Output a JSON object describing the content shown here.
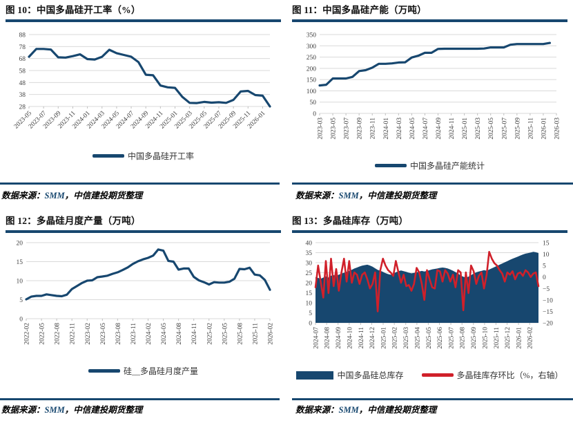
{
  "colors": {
    "navy": "#17476f",
    "red": "#d0202a",
    "grid": "#d9d9d9",
    "tick": "#bfbfbf",
    "axis_text": "#404040",
    "title_text": "#111111",
    "source_highlight": "#17476f"
  },
  "source_note": {
    "prefix": "数据来源：",
    "highlight": "SMM",
    "suffix": "，中信建投期货整理"
  },
  "chart_data": [
    {
      "id": "fig10",
      "title": "图 10：中国多晶硅开工率（%）",
      "type": "line",
      "x_freq": "monthly",
      "x_range": [
        "2023-05",
        "2026-02"
      ],
      "n_slots": 34,
      "ylim": [
        28,
        88
      ],
      "yticks": [
        28,
        38,
        48,
        58,
        68,
        78,
        88
      ],
      "x_rotation": -45,
      "xticks": {
        "labels": [
          "2023-05",
          "2023-07",
          "2023-09",
          "2023-11",
          "2024-01",
          "2024-03",
          "2024-05",
          "2024-07",
          "2024-09",
          "2024-11",
          "2025-01",
          "2025-03",
          "2025-05",
          "2025-07",
          "2025-09",
          "2025-11",
          "2026-01"
        ],
        "slots": [
          0,
          2,
          4,
          6,
          8,
          10,
          12,
          14,
          16,
          18,
          20,
          22,
          24,
          26,
          28,
          30,
          32
        ]
      },
      "series": [
        {
          "name": "中国多晶硅开工率",
          "type": "line",
          "color": "navy",
          "width": 3.2,
          "values": [
            69.5,
            76,
            76,
            75.5,
            69,
            68.8,
            70,
            71.5,
            67.5,
            67.2,
            69.5,
            75.3,
            72.5,
            71,
            69.5,
            65,
            54.5,
            54,
            45.5,
            44,
            43.5,
            36,
            31,
            30.8,
            31.8,
            31.2,
            31.5,
            31,
            33.5,
            40.5,
            41,
            37.5,
            37,
            28
          ]
        }
      ],
      "legend": [
        {
          "label": "中国多晶硅开工率",
          "type": "line",
          "color": "navy"
        }
      ]
    },
    {
      "id": "fig11",
      "title": "图 11：中国多晶硅产能（万吨）",
      "type": "line",
      "x_freq": "monthly",
      "x_range": [
        "2023-03",
        "2026-02"
      ],
      "n_slots": 37,
      "ylim": [
        0,
        350
      ],
      "yticks": [
        0,
        50,
        100,
        150,
        200,
        250,
        300,
        350
      ],
      "x_rotation": -90,
      "xticks": {
        "labels": [
          "2023-03",
          "2023-05",
          "2023-07",
          "2023-09",
          "2023-11",
          "2024-01",
          "2024-03",
          "2024-05",
          "2024-07",
          "2024-09",
          "2024-11",
          "2025-01",
          "2025-03",
          "2025-05",
          "2025-07",
          "2025-09",
          "2025-11",
          "2026-01",
          "2026-03"
        ],
        "slots": [
          0,
          2,
          4,
          6,
          8,
          10,
          12,
          14,
          16,
          18,
          20,
          22,
          24,
          26,
          28,
          30,
          32,
          34,
          36
        ]
      },
      "series": [
        {
          "name": "中国多晶硅产能统计",
          "type": "line",
          "color": "navy",
          "width": 3.2,
          "values": [
            124,
            127,
            155,
            155,
            155,
            162,
            188,
            192,
            203,
            220,
            220,
            222,
            226,
            227,
            248,
            256,
            269,
            269,
            286,
            287,
            287,
            287,
            287,
            287,
            287,
            288,
            293,
            293,
            293,
            305,
            308,
            308,
            308,
            308,
            308,
            313
          ]
        }
      ],
      "legend": [
        {
          "label": "中国多晶硅产能统计",
          "type": "line",
          "color": "navy"
        }
      ]
    },
    {
      "id": "fig12",
      "title": "图 12：多晶硅月度产量（万吨）",
      "type": "line",
      "x_freq": "monthly",
      "x_range": [
        "2022-02",
        "2026-02"
      ],
      "n_slots": 49,
      "ylim": [
        0,
        20
      ],
      "yticks": [
        0,
        5,
        10,
        15,
        20
      ],
      "x_rotation": -90,
      "xticks": {
        "labels": [
          "2022-02",
          "2022-05",
          "2022-08",
          "2022-11",
          "2023-02",
          "2023-05",
          "2023-08",
          "2023-11",
          "2024-02",
          "2024-05",
          "2024-08",
          "2024-11",
          "2025-02",
          "2025-05",
          "2025-08",
          "2025-11",
          "2026-02"
        ],
        "slots": [
          0,
          3,
          6,
          9,
          12,
          15,
          18,
          21,
          24,
          27,
          30,
          33,
          36,
          39,
          42,
          45,
          48
        ]
      },
      "series": [
        {
          "name": "硅__多晶硅月度产量",
          "type": "line",
          "color": "navy",
          "width": 3.2,
          "values": [
            5.1,
            5.8,
            6.0,
            6.0,
            6.4,
            6.2,
            6.0,
            5.9,
            6.3,
            7.8,
            8.6,
            9.4,
            10.0,
            10.1,
            10.9,
            11.1,
            11.3,
            11.8,
            12.2,
            12.8,
            13.5,
            14.4,
            15.1,
            15.6,
            16.0,
            16.6,
            18.2,
            17.9,
            15.2,
            15.0,
            12.9,
            13.2,
            13.2,
            11.0,
            10.1,
            9.6,
            9.0,
            9.6,
            9.5,
            9.5,
            9.7,
            10.5,
            13.1,
            13.0,
            13.4,
            11.6,
            11.4,
            10.2,
            7.6
          ]
        }
      ],
      "legend": [
        {
          "label": "硅__多晶硅月度产量",
          "type": "line",
          "color": "navy"
        }
      ]
    },
    {
      "id": "fig13",
      "title": "图 13：多晶硅库存（万吨）",
      "type": "area+line",
      "x_freq": "weekly",
      "x_range": [
        "2024-07",
        "2026-02"
      ],
      "n_slots": 87,
      "ylim": [
        0,
        40
      ],
      "yticks": [
        0,
        5,
        10,
        15,
        20,
        25,
        30,
        35,
        40
      ],
      "ylim_right": [
        -20,
        15
      ],
      "yticks_right": [
        -20,
        -15,
        -10,
        -5,
        0,
        5,
        10,
        15
      ],
      "x_rotation": -90,
      "xticks": {
        "labels": [
          "2024-07",
          "2024-08",
          "2024-09",
          "2024-10",
          "2024-11",
          "2024-12",
          "2025-01",
          "2025-02",
          "2025-03",
          "2025-04",
          "2025-05",
          "2025-06",
          "2025-07",
          "2025-08",
          "2025-09",
          "2025-10",
          "2025-11",
          "2025-12",
          "2026-01",
          "2026-02"
        ],
        "slots": [
          0,
          4.3,
          8.7,
          13,
          17.4,
          21.7,
          26.1,
          30.4,
          34.8,
          39.1,
          43.5,
          47.8,
          52.2,
          56.5,
          60.9,
          65.2,
          69.6,
          73.9,
          78.3,
          82.6
        ]
      },
      "series": [
        {
          "name": "中国多晶硅总库存",
          "type": "area",
          "color": "navy",
          "axis": "left",
          "values": [
            22.8,
            22.4,
            22.0,
            22.6,
            23.2,
            22.6,
            23.5,
            23.8,
            23.4,
            24.0,
            24.6,
            25.0,
            25.4,
            25.9,
            26.5,
            27.1,
            27.6,
            28.1,
            28.5,
            28.8,
            29.0,
            28.6,
            28.0,
            27.2,
            26.4,
            26.0,
            25.4,
            24.8,
            24.3,
            24.0,
            24.6,
            25.2,
            25.8,
            26.1,
            25.8,
            25.4,
            25.0,
            24.7,
            24.9,
            25.2,
            25.6,
            25.9,
            25.6,
            25.9,
            26.3,
            26.7,
            26.9,
            27.1,
            27.4,
            27.6,
            27.4,
            27.1,
            26.6,
            26.0,
            25.3,
            24.6,
            23.6,
            23.0,
            22.6,
            23.0,
            23.8,
            24.6,
            25.2,
            25.6,
            25.9,
            26.3,
            26.0,
            26.6,
            27.2,
            27.8,
            28.4,
            29.0,
            29.6,
            30.2,
            30.8,
            31.4,
            32.0,
            32.5,
            33.0,
            33.6,
            34.1,
            34.5,
            34.8,
            35.1,
            35.4,
            35.2,
            34.8
          ]
        },
        {
          "name": "多晶硅库存环比（%，右轴）",
          "type": "line",
          "color": "red",
          "width": 2.6,
          "axis": "right",
          "values": [
            -4.5,
            5,
            -2,
            -9,
            7,
            -7,
            8,
            -4,
            3.5,
            -6,
            2,
            8,
            -2,
            7,
            -2.5,
            2,
            1,
            -3,
            1,
            2,
            -1,
            -5,
            -3,
            2,
            -15,
            3,
            8,
            5,
            3,
            2,
            0.5,
            7,
            2,
            -2.5,
            1,
            -4,
            -3.5,
            -6,
            -3,
            4,
            2,
            -3,
            -10,
            3,
            -1,
            -4.5,
            -5,
            3,
            2.5,
            -2,
            3,
            1.5,
            -2,
            1,
            -4.5,
            3,
            2,
            -14.5,
            2,
            -7,
            5,
            2.5,
            -3,
            0.5,
            2,
            -5,
            1,
            11,
            8,
            6,
            5,
            3,
            1.5,
            -2,
            2,
            1,
            2.5,
            -1,
            1.5,
            2,
            0.5,
            3,
            2,
            0,
            1.5,
            2,
            -4
          ]
        }
      ],
      "legend": [
        {
          "label": "中国多晶硅总库存",
          "type": "area",
          "color": "navy"
        },
        {
          "label": "多晶硅库存环比（%，右轴）",
          "type": "line",
          "color": "red"
        }
      ]
    }
  ]
}
